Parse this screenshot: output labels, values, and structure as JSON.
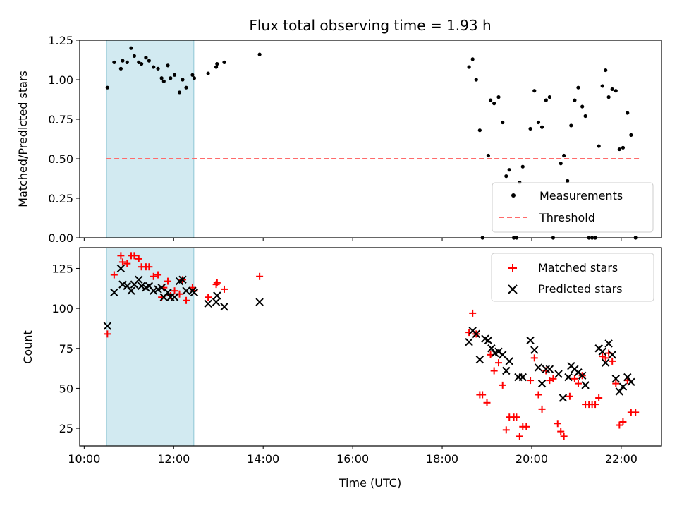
{
  "figure": {
    "title": "Flux total observing time = 1.93 h"
  },
  "chart_data": [
    {
      "type": "scatter",
      "panel": "top",
      "title": "Flux total observing time = 1.93 h",
      "xlabel": "",
      "ylabel": "Matched/Predicted stars",
      "x_unit": "hours UTC",
      "xlim": [
        9.9,
        22.9
      ],
      "ylim": [
        0,
        1.25
      ],
      "yticks": [
        "0.00",
        "0.25",
        "0.50",
        "0.75",
        "1.00",
        "1.25"
      ],
      "shaded_interval": {
        "x": [
          10.5,
          12.45
        ],
        "color": "#add8e6"
      },
      "legend": {
        "location": "lower right"
      },
      "series": [
        {
          "name": "Measurements",
          "marker": "dot",
          "color": "#000000",
          "points": [
            [
              10.52,
              0.95
            ],
            [
              10.67,
              1.11
            ],
            [
              10.82,
              1.07
            ],
            [
              10.86,
              1.12
            ],
            [
              10.96,
              1.11
            ],
            [
              11.05,
              1.2
            ],
            [
              11.12,
              1.15
            ],
            [
              11.22,
              1.11
            ],
            [
              11.28,
              1.1
            ],
            [
              11.38,
              1.14
            ],
            [
              11.45,
              1.12
            ],
            [
              11.55,
              1.08
            ],
            [
              11.65,
              1.07
            ],
            [
              11.73,
              1.01
            ],
            [
              11.78,
              0.99
            ],
            [
              11.87,
              1.09
            ],
            [
              11.93,
              1.01
            ],
            [
              12.02,
              1.03
            ],
            [
              12.13,
              0.92
            ],
            [
              12.2,
              1.0
            ],
            [
              12.28,
              0.95
            ],
            [
              12.42,
              1.03
            ],
            [
              12.46,
              1.01
            ],
            [
              12.77,
              1.04
            ],
            [
              12.95,
              1.08
            ],
            [
              12.97,
              1.1
            ],
            [
              13.13,
              1.11
            ],
            [
              13.92,
              1.16
            ],
            [
              18.6,
              1.08
            ],
            [
              18.68,
              1.13
            ],
            [
              18.76,
              1.0
            ],
            [
              18.84,
              0.68
            ],
            [
              18.9,
              0.0
            ],
            [
              19.03,
              0.52
            ],
            [
              19.08,
              0.87
            ],
            [
              19.16,
              0.85
            ],
            [
              19.26,
              0.89
            ],
            [
              19.35,
              0.73
            ],
            [
              19.43,
              0.39
            ],
            [
              19.5,
              0.43
            ],
            [
              19.6,
              0.0
            ],
            [
              19.66,
              0.0
            ],
            [
              19.73,
              0.35
            ],
            [
              19.8,
              0.45
            ],
            [
              19.97,
              0.69
            ],
            [
              20.06,
              0.93
            ],
            [
              20.15,
              0.73
            ],
            [
              20.23,
              0.7
            ],
            [
              20.32,
              0.87
            ],
            [
              20.4,
              0.89
            ],
            [
              20.48,
              0.0
            ],
            [
              20.65,
              0.47
            ],
            [
              20.72,
              0.52
            ],
            [
              20.8,
              0.36
            ],
            [
              20.88,
              0.71
            ],
            [
              20.96,
              0.87
            ],
            [
              21.04,
              0.95
            ],
            [
              21.13,
              0.83
            ],
            [
              21.2,
              0.77
            ],
            [
              21.28,
              0.0
            ],
            [
              21.35,
              0.0
            ],
            [
              21.42,
              0.0
            ],
            [
              21.5,
              0.58
            ],
            [
              21.58,
              0.96
            ],
            [
              21.65,
              1.06
            ],
            [
              21.72,
              0.89
            ],
            [
              21.8,
              0.94
            ],
            [
              21.88,
              0.93
            ],
            [
              21.96,
              0.56
            ],
            [
              22.04,
              0.57
            ],
            [
              22.14,
              0.79
            ],
            [
              22.22,
              0.65
            ],
            [
              22.32,
              0.0
            ]
          ]
        },
        {
          "name": "Threshold",
          "line_style": "dashed",
          "color": "#ff6b6b",
          "points": [
            [
              10.5,
              0.5
            ],
            [
              22.4,
              0.5
            ]
          ]
        }
      ],
      "xticks": []
    },
    {
      "type": "scatter",
      "panel": "bottom",
      "title": "",
      "xlabel": "Time (UTC)",
      "ylabel": "Count",
      "x_unit": "hours UTC",
      "xlim": [
        9.9,
        22.9
      ],
      "ylim": [
        14,
        138
      ],
      "yticks": [
        "25",
        "50",
        "75",
        "100",
        "125"
      ],
      "xticks": [
        "10:00",
        "12:00",
        "14:00",
        "16:00",
        "18:00",
        "20:00",
        "22:00"
      ],
      "shaded_interval": {
        "x": [
          10.5,
          12.45
        ],
        "color": "#add8e6"
      },
      "legend": {
        "location": "upper right"
      },
      "series": [
        {
          "name": "Matched stars",
          "marker": "plus",
          "color": "#ff0000",
          "points": [
            [
              10.52,
              84
            ],
            [
              10.67,
              121
            ],
            [
              10.82,
              133
            ],
            [
              10.86,
              129
            ],
            [
              10.96,
              128
            ],
            [
              11.05,
              133
            ],
            [
              11.12,
              133
            ],
            [
              11.22,
              131
            ],
            [
              11.28,
              126
            ],
            [
              11.38,
              126
            ],
            [
              11.45,
              126
            ],
            [
              11.55,
              120
            ],
            [
              11.65,
              121
            ],
            [
              11.73,
              107
            ],
            [
              11.78,
              113
            ],
            [
              11.87,
              117
            ],
            [
              11.93,
              108
            ],
            [
              12.02,
              111
            ],
            [
              12.13,
              109
            ],
            [
              12.2,
              118
            ],
            [
              12.28,
              105
            ],
            [
              12.42,
              113
            ],
            [
              12.46,
              111
            ],
            [
              12.77,
              107
            ],
            [
              12.95,
              115
            ],
            [
              12.97,
              116
            ],
            [
              13.13,
              112
            ],
            [
              13.92,
              120
            ],
            [
              18.6,
              85
            ],
            [
              18.68,
              97
            ],
            [
              18.76,
              84
            ],
            [
              18.84,
              46
            ],
            [
              18.9,
              46
            ],
            [
              19.0,
              41
            ],
            [
              19.08,
              71
            ],
            [
              19.16,
              61
            ],
            [
              19.26,
              66
            ],
            [
              19.35,
              52
            ],
            [
              19.43,
              24
            ],
            [
              19.5,
              32
            ],
            [
              19.6,
              32
            ],
            [
              19.66,
              32
            ],
            [
              19.73,
              20
            ],
            [
              19.8,
              26
            ],
            [
              19.88,
              26
            ],
            [
              19.97,
              55
            ],
            [
              20.06,
              69
            ],
            [
              20.15,
              46
            ],
            [
              20.23,
              37
            ],
            [
              20.32,
              61
            ],
            [
              20.4,
              55
            ],
            [
              20.48,
              56
            ],
            [
              20.58,
              28
            ],
            [
              20.65,
              23
            ],
            [
              20.72,
              20
            ],
            [
              20.85,
              45
            ],
            [
              20.96,
              56
            ],
            [
              21.04,
              53
            ],
            [
              21.13,
              58
            ],
            [
              21.2,
              40
            ],
            [
              21.28,
              40
            ],
            [
              21.35,
              40
            ],
            [
              21.42,
              40
            ],
            [
              21.5,
              44
            ],
            [
              21.58,
              70
            ],
            [
              21.65,
              69
            ],
            [
              21.72,
              72
            ],
            [
              21.8,
              67
            ],
            [
              21.88,
              53
            ],
            [
              21.96,
              27
            ],
            [
              22.04,
              29
            ],
            [
              22.14,
              55
            ],
            [
              22.22,
              35
            ],
            [
              22.32,
              35
            ]
          ]
        },
        {
          "name": "Predicted stars",
          "marker": "x",
          "color": "#000000",
          "points": [
            [
              10.52,
              89
            ],
            [
              10.67,
              110
            ],
            [
              10.82,
              125
            ],
            [
              10.86,
              115
            ],
            [
              10.96,
              114
            ],
            [
              11.05,
              111
            ],
            [
              11.12,
              115
            ],
            [
              11.22,
              118
            ],
            [
              11.28,
              114
            ],
            [
              11.38,
              113
            ],
            [
              11.45,
              114
            ],
            [
              11.55,
              111
            ],
            [
              11.65,
              112
            ],
            [
              11.73,
              113
            ],
            [
              11.78,
              107
            ],
            [
              11.87,
              110
            ],
            [
              11.93,
              107
            ],
            [
              12.02,
              107
            ],
            [
              12.13,
              117
            ],
            [
              12.2,
              118
            ],
            [
              12.28,
              111
            ],
            [
              12.42,
              111
            ],
            [
              12.46,
              110
            ],
            [
              12.77,
              103
            ],
            [
              12.95,
              104
            ],
            [
              12.97,
              108
            ],
            [
              13.13,
              101
            ],
            [
              13.92,
              104
            ],
            [
              18.6,
              79
            ],
            [
              18.68,
              86
            ],
            [
              18.76,
              84
            ],
            [
              18.84,
              68
            ],
            [
              18.96,
              81
            ],
            [
              19.03,
              80
            ],
            [
              19.1,
              75
            ],
            [
              19.18,
              72
            ],
            [
              19.26,
              73
            ],
            [
              19.35,
              71
            ],
            [
              19.43,
              61
            ],
            [
              19.5,
              67
            ],
            [
              19.7,
              57
            ],
            [
              19.8,
              57
            ],
            [
              19.97,
              80
            ],
            [
              20.06,
              74
            ],
            [
              20.15,
              63
            ],
            [
              20.23,
              53
            ],
            [
              20.32,
              62
            ],
            [
              20.4,
              62
            ],
            [
              20.6,
              59
            ],
            [
              20.7,
              44
            ],
            [
              20.82,
              57
            ],
            [
              20.88,
              64
            ],
            [
              20.96,
              62
            ],
            [
              21.04,
              60
            ],
            [
              21.13,
              58
            ],
            [
              21.2,
              52
            ],
            [
              21.5,
              75
            ],
            [
              21.58,
              73
            ],
            [
              21.65,
              66
            ],
            [
              21.72,
              78
            ],
            [
              21.8,
              71
            ],
            [
              21.88,
              56
            ],
            [
              21.96,
              48
            ],
            [
              22.04,
              51
            ],
            [
              22.14,
              57
            ],
            [
              22.22,
              54
            ]
          ]
        }
      ]
    }
  ]
}
